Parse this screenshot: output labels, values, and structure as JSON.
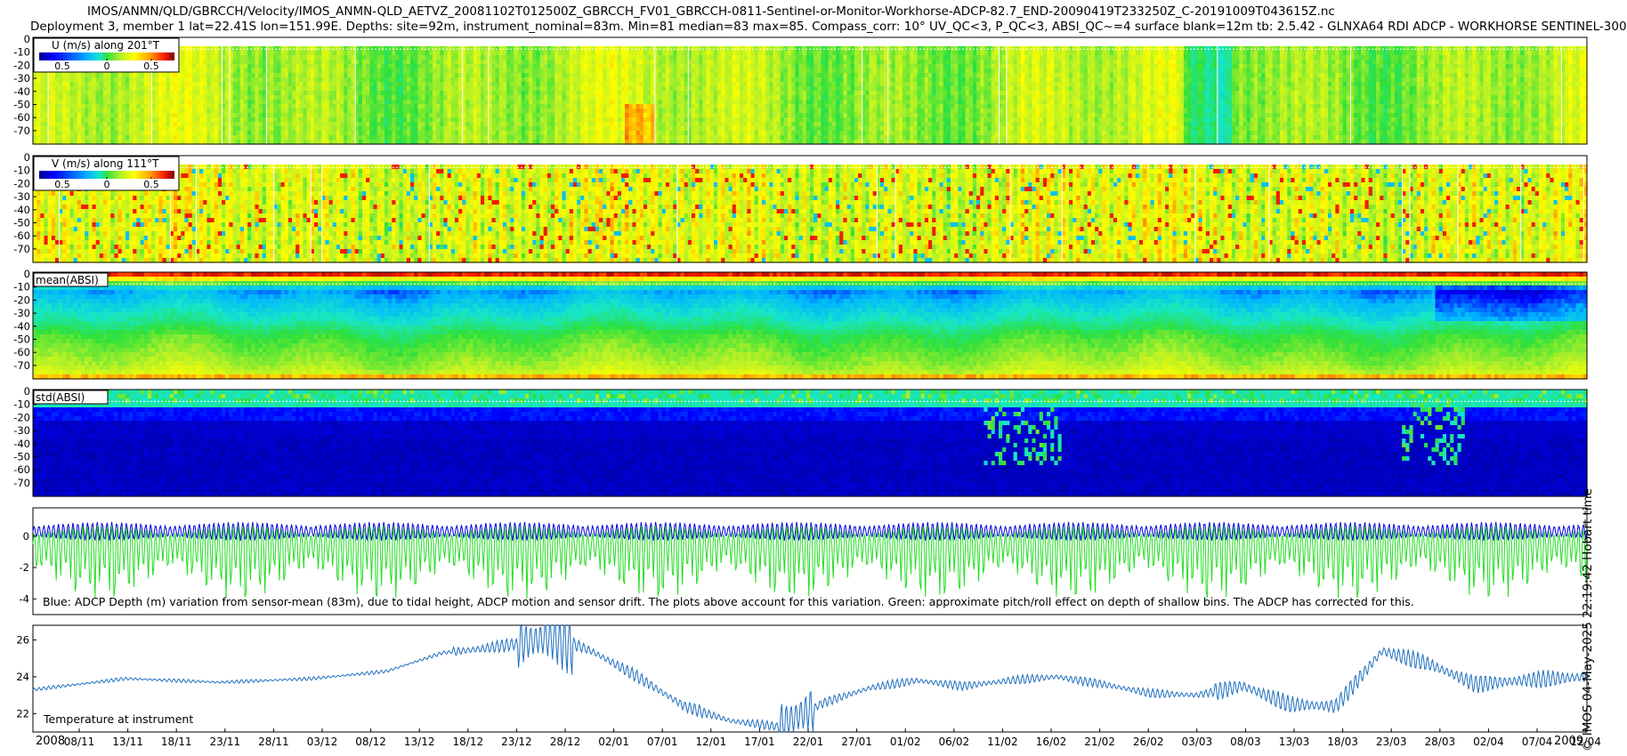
{
  "header": {
    "line1": "IMOS/ANMN/QLD/GBRCCH/Velocity/IMOS_ANMN-QLD_AETVZ_20081102T012500Z_GBRCCH_FV01_GBRCCH-0811-Sentinel-or-Monitor-Workhorse-ADCP-82.7_END-20090419T233250Z_C-20191009T043615Z.nc",
    "line2": "Deployment 3, member 1 lat=22.41S lon=151.99E. Depths: site=92m, instrument_nominal=83m. Min=81 median=83 max=85. Compass_corr: 10° UV_QC<3, P_QC<3, ABSI_QC~=4 surface blank=12m tb: 2.5.42 - GLNXA64 RDI ADCP - WORKHORSE SENTINEL-300"
  },
  "side_label": "© IMOS 04-May-2025 22:19:42 Hobart time",
  "colors": {
    "jet": [
      "#00008f",
      "#0000ff",
      "#00b4ff",
      "#17e6c8",
      "#2ee03c",
      "#b4f028",
      "#ffff00",
      "#ffa000",
      "#ff2000",
      "#800000"
    ],
    "depth_line": "#0000dd",
    "pitch_line": "#22dd22",
    "temp_line": "#1f6fc0"
  },
  "chart_data": [
    {
      "type": "heatmap",
      "name": "u-velocity",
      "title": "U (m/s) along 201°T",
      "yticks": [
        "0",
        "-10",
        "-20",
        "-30",
        "-40",
        "-50",
        "-60",
        "-70"
      ],
      "colorbar_ticks": [
        "0.5",
        "0",
        "0.5"
      ],
      "clim": [
        -0.75,
        0.75
      ],
      "dominant_value": 0.0
    },
    {
      "type": "heatmap",
      "name": "v-velocity",
      "title": "V (m/s) along 111°T",
      "yticks": [
        "0",
        "-10",
        "-20",
        "-30",
        "-40",
        "-50",
        "-60",
        "-70"
      ],
      "colorbar_ticks": [
        "0.5",
        "0",
        "0.5"
      ],
      "clim": [
        -0.75,
        0.75
      ],
      "dominant_value": 0.15
    },
    {
      "type": "heatmap",
      "name": "mean-absi",
      "title": "mean(ABSI)",
      "yticks": [
        "0",
        "-10",
        "-20",
        "-30",
        "-40",
        "-50",
        "-60",
        "-70"
      ],
      "profile_levels": [
        0.85,
        0.2,
        0.28,
        0.35,
        0.45,
        0.5,
        0.55,
        0.65
      ]
    },
    {
      "type": "heatmap",
      "name": "std-absi",
      "title": "std(ABSI)",
      "yticks": [
        "0",
        "-10",
        "-20",
        "-30",
        "-40",
        "-50",
        "-60",
        "-70"
      ],
      "profile_levels": [
        0.35,
        0.12,
        0.06,
        0.05,
        0.05,
        0.05,
        0.05,
        0.05
      ]
    },
    {
      "type": "line",
      "name": "adcp-depth-variation",
      "annotation": "Blue: ADCP Depth (m) variation from sensor-mean (83m), due to tidal height, ADCP motion and sensor drift. The plots above account for this variation. Green: approximate pitch/roll effect on depth of shallow bins. The ADCP has corrected for this.",
      "ylim": [
        -5,
        1.8
      ],
      "yticks": [
        0,
        -2,
        -4
      ],
      "series": [
        {
          "values_desc": "blue",
          "mean": 0.3,
          "amplitude": 0.6
        },
        {
          "values_desc": "green",
          "mean": -0.5,
          "amplitude": 1.2
        }
      ]
    },
    {
      "type": "line",
      "name": "temperature",
      "annotation": "Temperature at instrument",
      "ylim": [
        21,
        26.8
      ],
      "yticks": [
        22,
        24,
        26
      ],
      "x_days": [
        0,
        10,
        20,
        30,
        38,
        41,
        44,
        48,
        52,
        56,
        60,
        65,
        70,
        75,
        80,
        85,
        90,
        95,
        100,
        105,
        110,
        115,
        120,
        125,
        130,
        135,
        140,
        145,
        150,
        155,
        160,
        167
      ],
      "y_temp": [
        23.3,
        23.9,
        23.7,
        23.9,
        24.3,
        24.8,
        25.3,
        25.5,
        25.8,
        26.2,
        25.4,
        24.0,
        22.4,
        21.6,
        21.3,
        22.6,
        23.4,
        23.8,
        23.5,
        23.8,
        24.0,
        23.6,
        23.1,
        23.0,
        23.5,
        22.5,
        22.4,
        25.4,
        24.7,
        23.6,
        23.8,
        24.0
      ]
    }
  ],
  "time_axis": {
    "year_start": "2008",
    "year_end": "2009",
    "tick_labels": [
      "08/11",
      "13/11",
      "18/11",
      "23/11",
      "28/11",
      "03/12",
      "08/12",
      "13/12",
      "18/12",
      "23/12",
      "28/12",
      "02/01",
      "07/01",
      "12/01",
      "17/01",
      "22/01",
      "27/01",
      "01/02",
      "06/02",
      "11/02",
      "16/02",
      "21/02",
      "26/02",
      "03/03",
      "08/03",
      "13/03",
      "18/03",
      "23/03",
      "28/03",
      "02/04",
      "07/04",
      "12/04"
    ]
  }
}
